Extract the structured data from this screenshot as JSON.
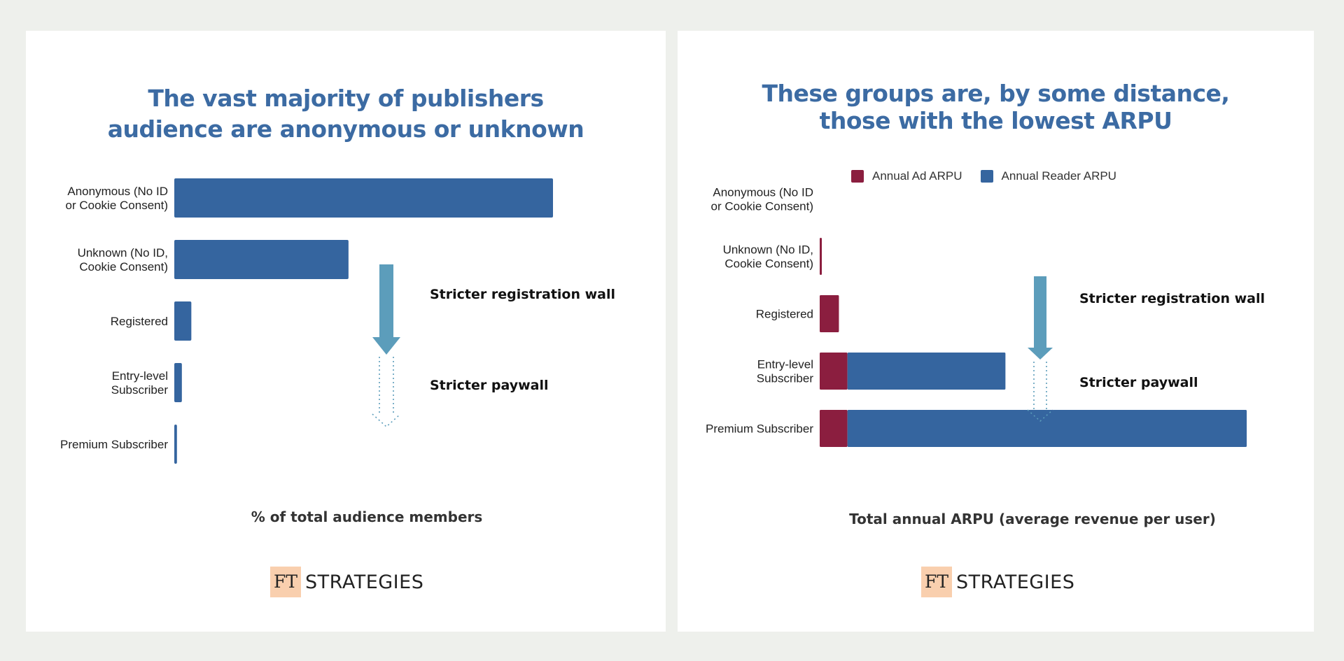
{
  "colors": {
    "bar_blue": "#35659f",
    "bar_red": "#8b1e3f",
    "arrow": "#5c9dbb",
    "title": "#3c6ba3"
  },
  "left": {
    "title": "The vast majority of publishers audience are anonymous or unknown",
    "xlabel": "% of total audience members",
    "annotations": {
      "upper": "Stricter registration wall",
      "lower": "Stricter paywall"
    },
    "logo": {
      "mark": "FT",
      "text": "STRATEGIES"
    }
  },
  "right": {
    "title": "These groups are, by some distance, those with the lowest ARPU",
    "xlabel": "Total annual ARPU (average revenue per user)",
    "legend": [
      "Annual Ad ARPU",
      "Annual Reader ARPU"
    ],
    "annotations": {
      "upper": "Stricter registration wall",
      "lower": "Stricter paywall"
    },
    "logo": {
      "mark": "FT",
      "text": "STRATEGIES"
    }
  },
  "chart_data": [
    {
      "type": "bar",
      "orientation": "horizontal",
      "title": "The vast majority of publishers audience are anonymous or unknown",
      "xlabel": "% of total audience members",
      "categories": [
        [
          "Anonymous (No ID",
          "or Cookie Consent)"
        ],
        [
          "Unknown (No ID,",
          "Cookie Consent)"
        ],
        [
          "Registered"
        ],
        [
          "Entry-level",
          "Subscriber"
        ],
        [
          "Premium Subscriber"
        ]
      ],
      "values": [
        100,
        46,
        4.5,
        2,
        0.7
      ],
      "xlim": [
        0,
        100
      ],
      "grid": false
    },
    {
      "type": "bar",
      "orientation": "horizontal",
      "stacked": true,
      "title": "These groups are, by some distance, those with the lowest ARPU",
      "xlabel": "Total annual ARPU (average revenue per user)",
      "categories": [
        [
          "Anonymous (No ID",
          "or Cookie Consent)"
        ],
        [
          "Unknown (No ID,",
          "Cookie Consent)"
        ],
        [
          "Registered"
        ],
        [
          "Entry-level",
          "Subscriber"
        ],
        [
          "Premium Subscriber"
        ]
      ],
      "series": [
        {
          "name": "Annual Ad ARPU",
          "values": [
            0,
            0.5,
            4.5,
            6.5,
            6.5
          ]
        },
        {
          "name": "Annual Reader ARPU",
          "values": [
            0,
            0,
            0,
            37,
            93.5
          ]
        }
      ],
      "xlim": [
        0,
        100
      ],
      "legend": "top",
      "grid": false
    }
  ]
}
